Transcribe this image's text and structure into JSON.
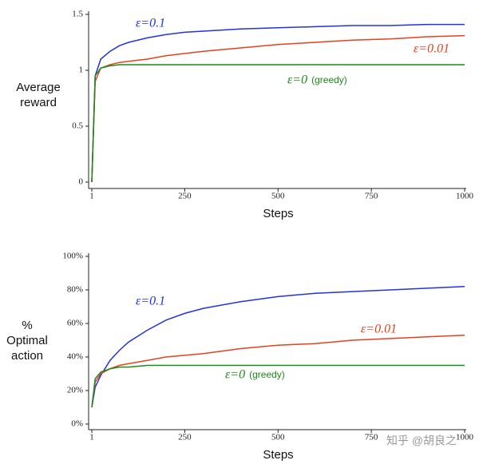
{
  "chart_data": [
    {
      "type": "line",
      "ylabel": [
        "Average",
        "reward"
      ],
      "xlabel": "Steps",
      "x": [
        1,
        10,
        25,
        50,
        75,
        100,
        150,
        200,
        250,
        300,
        400,
        500,
        600,
        700,
        800,
        900,
        1000
      ],
      "xlim": [
        1,
        1000
      ],
      "xticks": [
        1,
        250,
        500,
        750,
        1000
      ],
      "ylim": [
        0,
        1.5
      ],
      "yticks": [
        0,
        0.5,
        1,
        1.5
      ],
      "series": [
        {
          "name": "ε=0.1",
          "color": "#2233dd",
          "values": [
            0,
            0.95,
            1.1,
            1.17,
            1.22,
            1.25,
            1.29,
            1.32,
            1.34,
            1.35,
            1.37,
            1.38,
            1.39,
            1.4,
            1.4,
            1.41,
            1.41
          ]
        },
        {
          "name": "ε=0.01",
          "color": "#e8401c",
          "values": [
            0,
            0.9,
            1.02,
            1.05,
            1.07,
            1.08,
            1.1,
            1.13,
            1.15,
            1.17,
            1.2,
            1.23,
            1.25,
            1.27,
            1.28,
            1.3,
            1.31
          ]
        },
        {
          "name": "ε=0",
          "note": "(greedy)",
          "color": "#1a8a1a",
          "values": [
            0,
            0.95,
            1.02,
            1.04,
            1.05,
            1.05,
            1.05,
            1.05,
            1.05,
            1.05,
            1.05,
            1.05,
            1.05,
            1.05,
            1.05,
            1.05,
            1.05
          ]
        }
      ]
    },
    {
      "type": "line",
      "ylabel": [
        "%",
        "Optimal",
        "action"
      ],
      "xlabel": "Steps",
      "x": [
        1,
        10,
        25,
        50,
        75,
        100,
        150,
        200,
        250,
        300,
        400,
        500,
        600,
        700,
        800,
        900,
        1000
      ],
      "xlim": [
        1,
        1000
      ],
      "xticks": [
        1,
        250,
        500,
        750,
        1000
      ],
      "ylim": [
        0,
        100
      ],
      "yticks": [
        {
          "value": 0,
          "label": "0%"
        },
        {
          "value": 20,
          "label": "20%"
        },
        {
          "value": 40,
          "label": "40%"
        },
        {
          "value": 60,
          "label": "60%"
        },
        {
          "value": 80,
          "label": "80%"
        },
        {
          "value": 100,
          "label": "100%"
        }
      ],
      "series": [
        {
          "name": "ε=0.1",
          "color": "#2233dd",
          "values": [
            10,
            22,
            29,
            38,
            44,
            49,
            56,
            62,
            66,
            69,
            73,
            76,
            78,
            79,
            80,
            81,
            82
          ]
        },
        {
          "name": "ε=0.01",
          "color": "#e8401c",
          "values": [
            10,
            25,
            30,
            33,
            35,
            36,
            38,
            40,
            41,
            42,
            45,
            47,
            48,
            50,
            51,
            52,
            53
          ]
        },
        {
          "name": "ε=0",
          "note": "(greedy)",
          "color": "#1a8a1a",
          "values": [
            10,
            27,
            31,
            33,
            34,
            34,
            35,
            35,
            35,
            35,
            35,
            35,
            35,
            35,
            35,
            35,
            35
          ]
        }
      ]
    }
  ],
  "watermark": "知乎 @胡良之"
}
